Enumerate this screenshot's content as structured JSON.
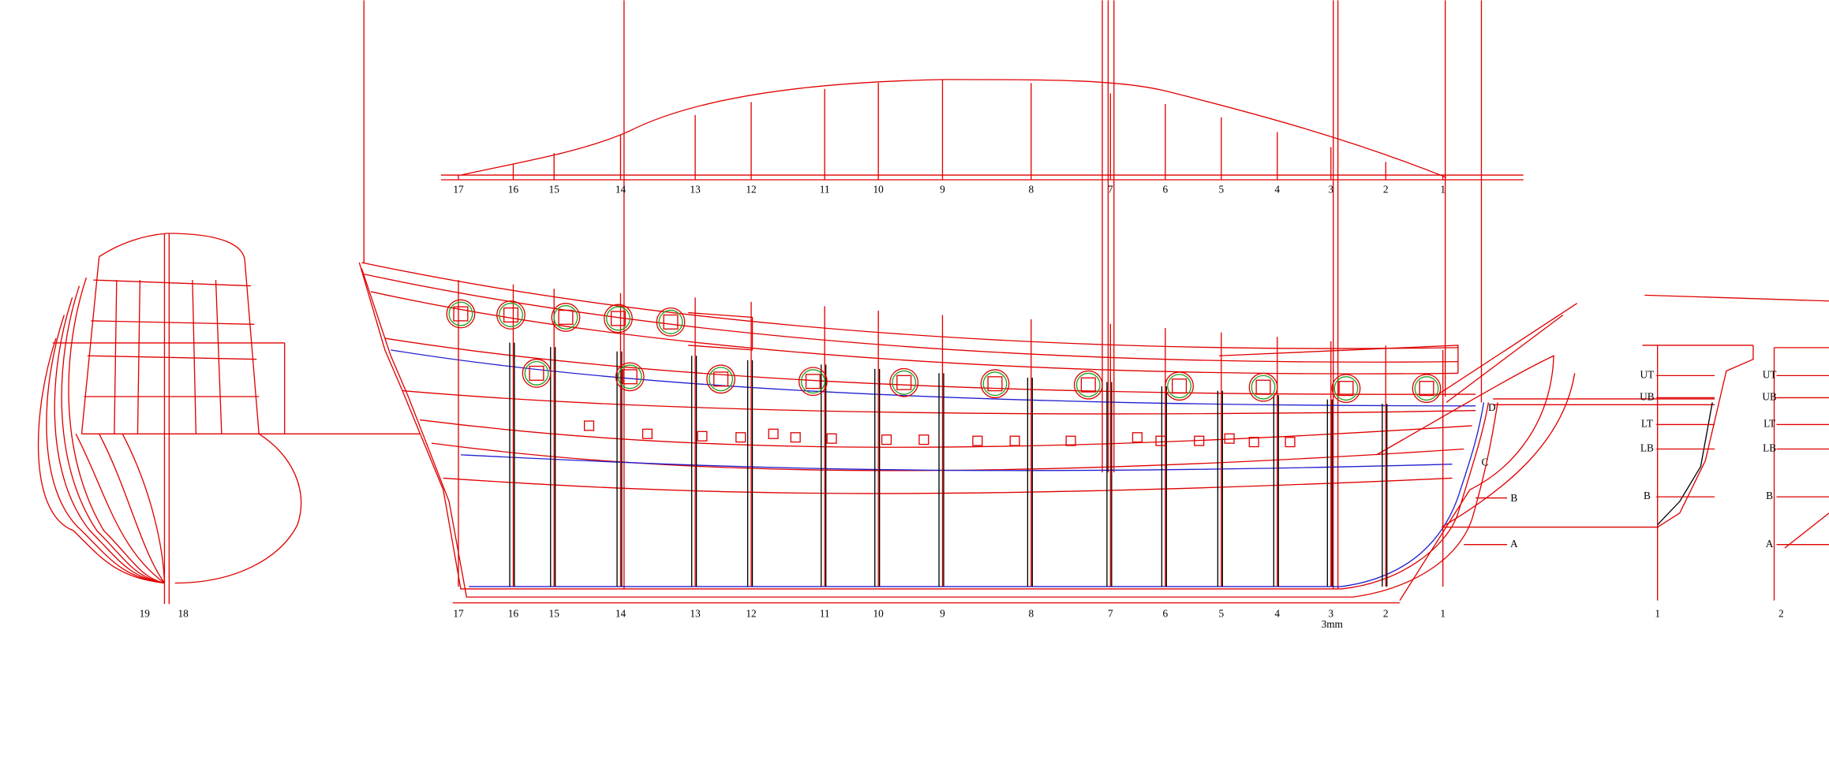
{
  "half_breadth_stations": [
    "17",
    "16",
    "15",
    "14",
    "13",
    "12",
    "11",
    "10",
    "9",
    "8",
    "7",
    "6",
    "5",
    "4",
    "3",
    "2",
    "1"
  ],
  "profile_stations": [
    "17",
    "16",
    "15",
    "14",
    "13",
    "12",
    "11",
    "10",
    "9",
    "8",
    "7",
    "6",
    "5",
    "4",
    "3",
    "2",
    "1"
  ],
  "scale_note": "3mm",
  "body_plan_stations": [
    "19",
    "18"
  ],
  "profile_waterlines": [
    "D",
    "C",
    "B",
    "A"
  ],
  "right_section_1": {
    "levels": [
      "UT",
      "UB",
      "LT",
      "LB",
      "B"
    ],
    "station": "1"
  },
  "right_section_2": {
    "levels": [
      "UT",
      "UB",
      "LT",
      "LB",
      "B",
      "A"
    ],
    "station": "2"
  }
}
